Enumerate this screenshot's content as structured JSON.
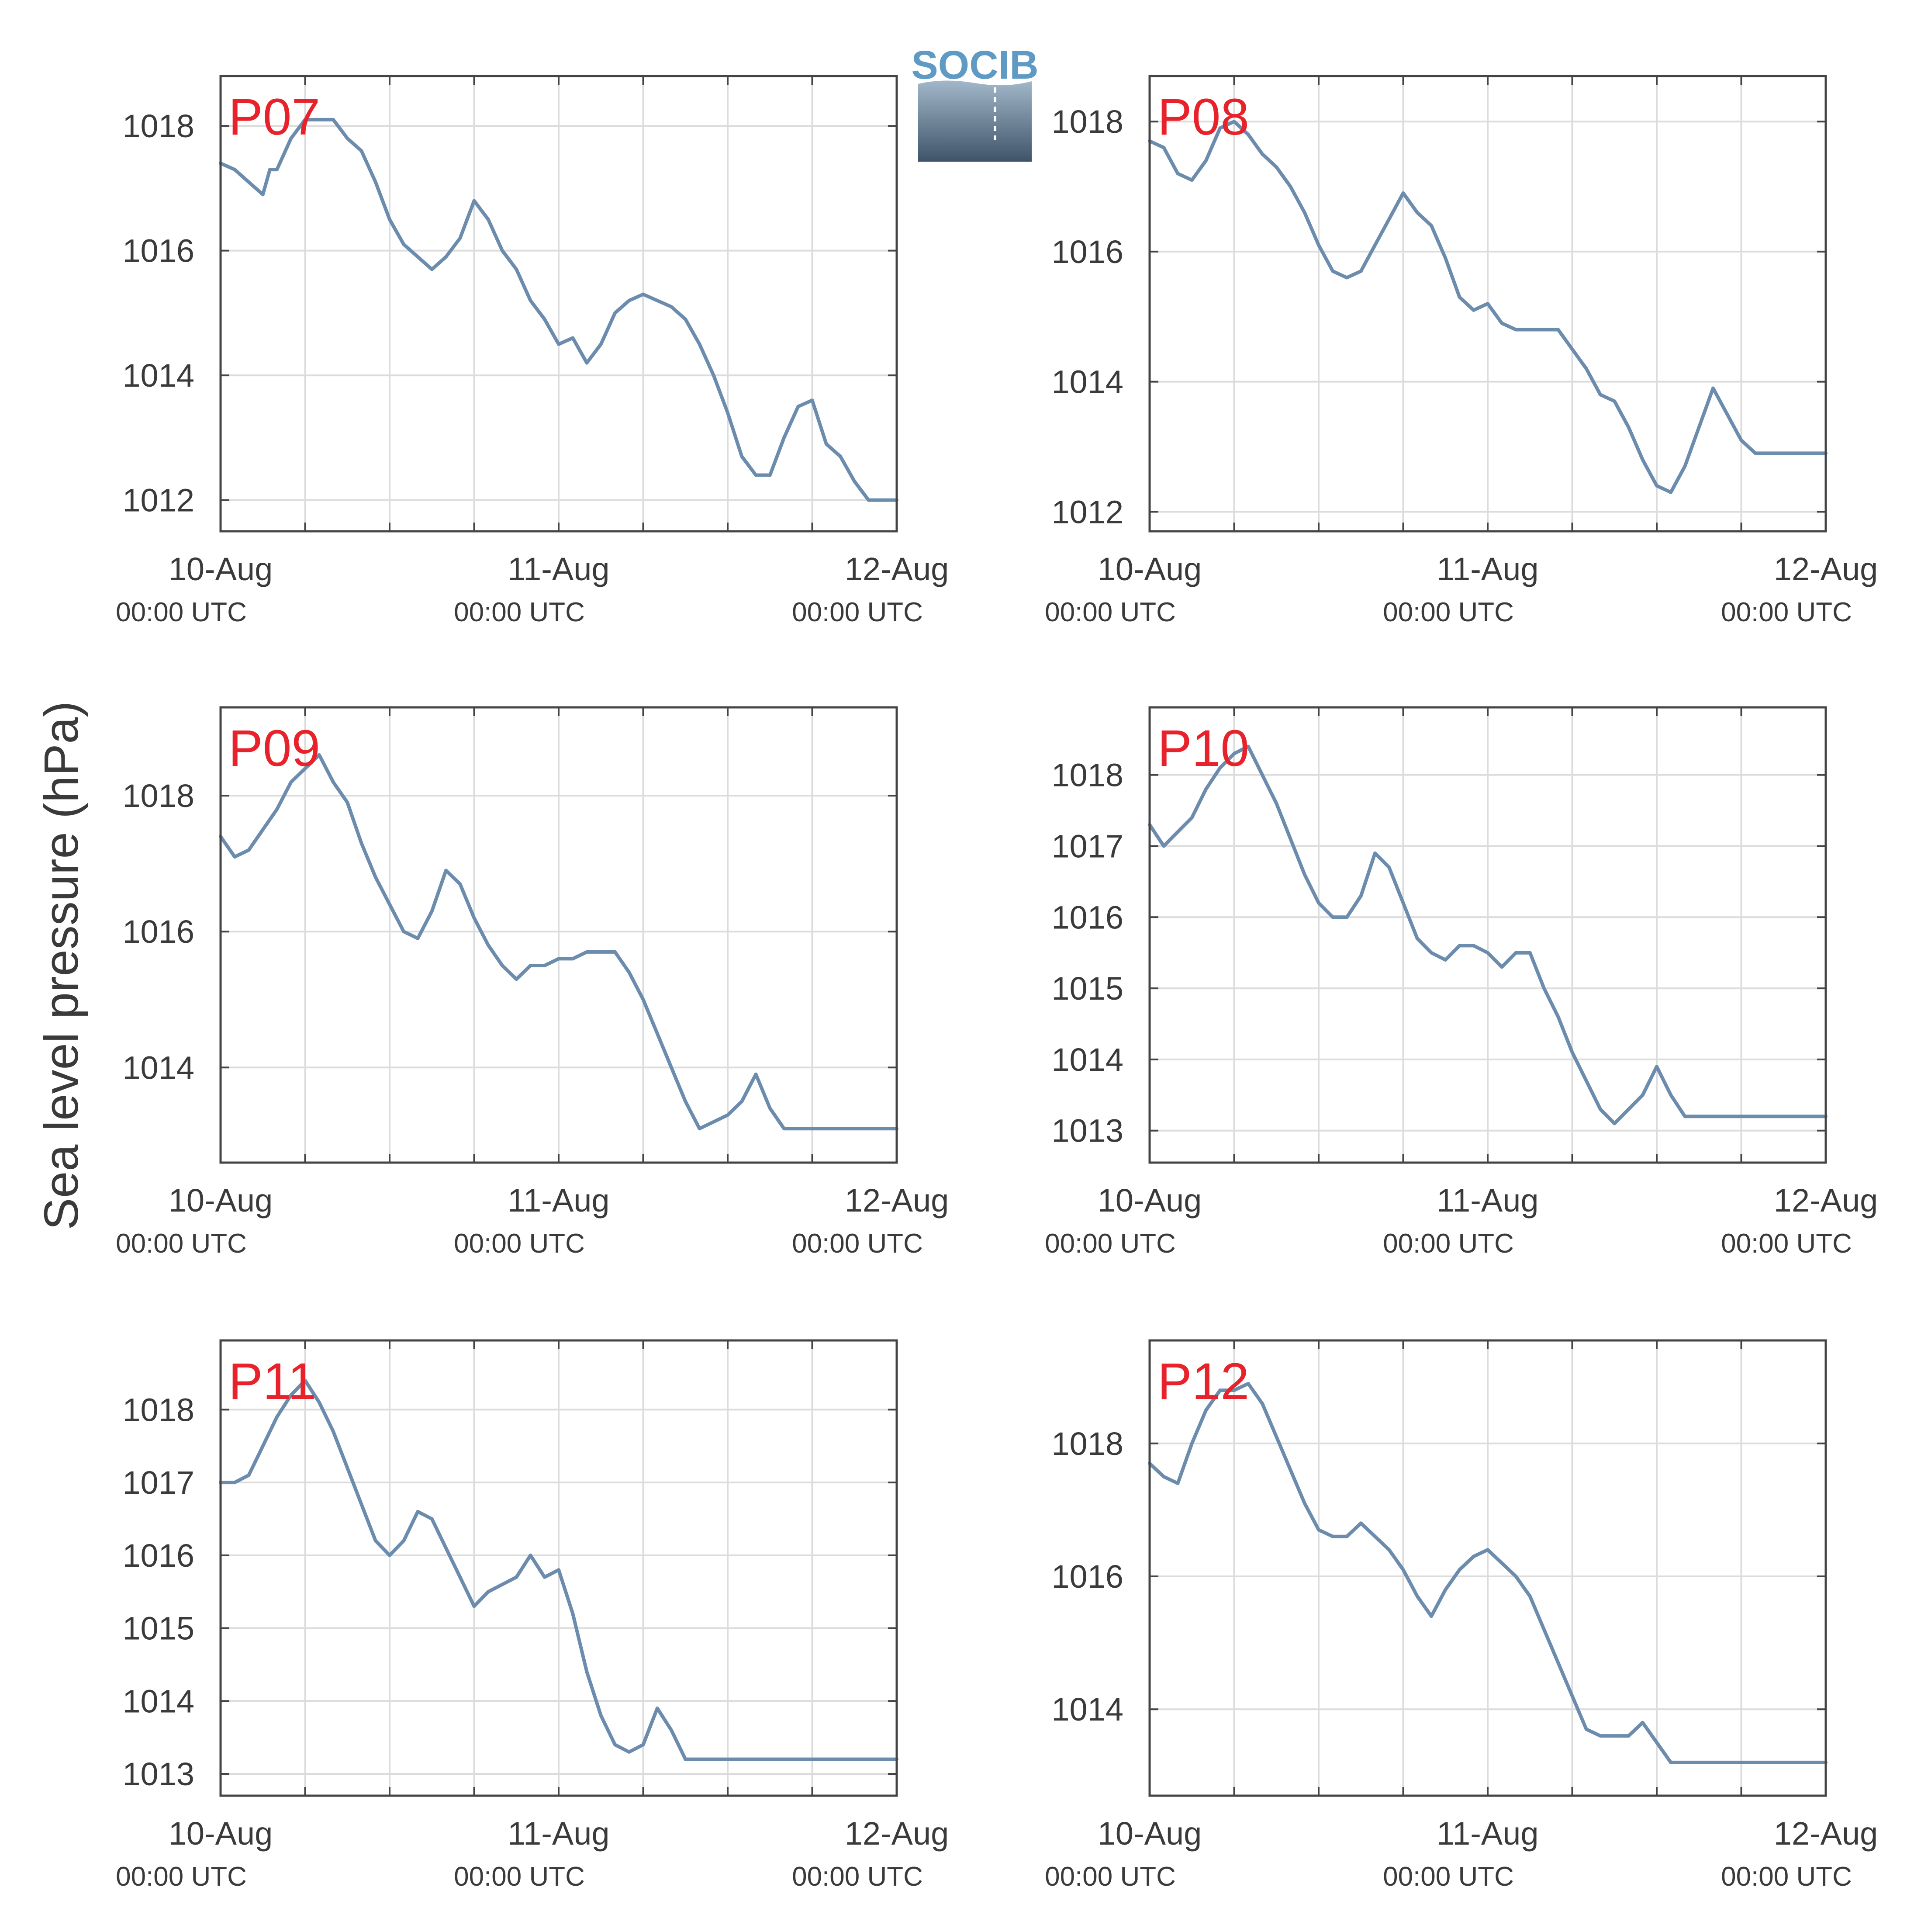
{
  "figure": {
    "ylabel": "Sea level pressure (hPa)",
    "logo_text": "SOCIB",
    "line_color": "#6c8cae",
    "label_color": "#e8222a",
    "grid_color": "#dcdcdc",
    "axis_color": "#444444",
    "text_color": "#3a3a3a"
  },
  "chart_data": [
    {
      "type": "line",
      "title": "P07",
      "xlabel": "",
      "ylabel": "Sea level pressure (hPa)",
      "xlim": [
        0,
        48
      ],
      "ylim": [
        1011.5,
        1018.8
      ],
      "grid": true,
      "xticks": [
        0,
        24,
        48
      ],
      "xtick_labels": [
        [
          "10-Aug",
          "00:00 UTC"
        ],
        [
          "11-Aug",
          "00:00 UTC"
        ],
        [
          "12-Aug",
          "00:00 UTC"
        ]
      ],
      "yticks": [
        1012,
        1014,
        1016,
        1018
      ],
      "series": [
        {
          "x": [
            0,
            1,
            2,
            3,
            3.5,
            4,
            5,
            6,
            7,
            8,
            9,
            10,
            11,
            12,
            13,
            14,
            15,
            16,
            17,
            18,
            19,
            20,
            21,
            22,
            23,
            24,
            25,
            26,
            27,
            28,
            29,
            30,
            31,
            32,
            33,
            34,
            35,
            36,
            37,
            38,
            39,
            40,
            41,
            42,
            43,
            44,
            45,
            46,
            47,
            48
          ],
          "y": [
            1017.4,
            1017.3,
            1017.1,
            1016.9,
            1017.3,
            1017.3,
            1017.8,
            1018.1,
            1018.1,
            1018.1,
            1017.8,
            1017.6,
            1017.1,
            1016.5,
            1016.1,
            1015.9,
            1015.7,
            1015.9,
            1016.2,
            1016.8,
            1016.5,
            1016.0,
            1015.7,
            1015.2,
            1014.9,
            1014.5,
            1014.6,
            1014.2,
            1014.5,
            1015.0,
            1015.2,
            1015.3,
            1015.2,
            1015.1,
            1014.9,
            1014.5,
            1014.0,
            1013.4,
            1012.7,
            1012.4,
            1012.4,
            1013.0,
            1013.5,
            1013.6,
            1012.9,
            1012.7,
            1012.3,
            1012.0,
            1012.0,
            1012.0
          ]
        }
      ]
    },
    {
      "type": "line",
      "title": "P08",
      "xlabel": "",
      "ylabel": "Sea level pressure (hPa)",
      "xlim": [
        0,
        48
      ],
      "ylim": [
        1011.7,
        1018.7
      ],
      "grid": true,
      "xticks": [
        0,
        24,
        48
      ],
      "xtick_labels": [
        [
          "10-Aug",
          "00:00 UTC"
        ],
        [
          "11-Aug",
          "00:00 UTC"
        ],
        [
          "12-Aug",
          "00:00 UTC"
        ]
      ],
      "yticks": [
        1012,
        1014,
        1016,
        1018
      ],
      "series": [
        {
          "x": [
            0,
            1,
            2,
            3,
            4,
            5,
            6,
            7,
            8,
            9,
            10,
            11,
            12,
            13,
            14,
            15,
            16,
            17,
            18,
            19,
            20,
            21,
            22,
            23,
            24,
            25,
            26,
            27,
            28,
            29,
            30,
            31,
            32,
            33,
            34,
            35,
            36,
            37,
            38,
            39,
            40,
            41,
            42,
            43,
            44,
            45,
            46,
            47,
            48
          ],
          "y": [
            1017.7,
            1017.6,
            1017.2,
            1017.1,
            1017.4,
            1017.9,
            1018.0,
            1017.8,
            1017.5,
            1017.3,
            1017.0,
            1016.6,
            1016.1,
            1015.7,
            1015.6,
            1015.7,
            1016.1,
            1016.5,
            1016.9,
            1016.6,
            1016.4,
            1015.9,
            1015.3,
            1015.1,
            1015.2,
            1014.9,
            1014.8,
            1014.8,
            1014.8,
            1014.8,
            1014.5,
            1014.2,
            1013.8,
            1013.7,
            1013.3,
            1012.8,
            1012.4,
            1012.3,
            1012.7,
            1013.3,
            1013.9,
            1013.5,
            1013.1,
            1012.9,
            1012.9,
            1012.9,
            1012.9,
            1012.9,
            1012.9
          ]
        }
      ]
    },
    {
      "type": "line",
      "title": "P09",
      "xlabel": "",
      "ylabel": "Sea level pressure (hPa)",
      "xlim": [
        0,
        48
      ],
      "ylim": [
        1012.6,
        1019.3
      ],
      "grid": true,
      "xticks": [
        0,
        24,
        48
      ],
      "xtick_labels": [
        [
          "10-Aug",
          "00:00 UTC"
        ],
        [
          "11-Aug",
          "00:00 UTC"
        ],
        [
          "12-Aug",
          "00:00 UTC"
        ]
      ],
      "yticks": [
        1014,
        1016,
        1018
      ],
      "series": [
        {
          "x": [
            0,
            1,
            2,
            3,
            4,
            5,
            6,
            7,
            8,
            9,
            10,
            11,
            12,
            13,
            14,
            15,
            16,
            17,
            18,
            19,
            20,
            21,
            22,
            23,
            24,
            25,
            26,
            27,
            28,
            29,
            30,
            31,
            32,
            33,
            34,
            35,
            36,
            37,
            38,
            39,
            40,
            41,
            42,
            43,
            44,
            45,
            46,
            47,
            48
          ],
          "y": [
            1017.4,
            1017.1,
            1017.2,
            1017.5,
            1017.8,
            1018.2,
            1018.4,
            1018.6,
            1018.2,
            1017.9,
            1017.3,
            1016.8,
            1016.4,
            1016.0,
            1015.9,
            1016.3,
            1016.9,
            1016.7,
            1016.2,
            1015.8,
            1015.5,
            1015.3,
            1015.5,
            1015.5,
            1015.6,
            1015.6,
            1015.7,
            1015.7,
            1015.7,
            1015.4,
            1015.0,
            1014.5,
            1014.0,
            1013.5,
            1013.1,
            1013.2,
            1013.3,
            1013.5,
            1013.9,
            1013.4,
            1013.1,
            1013.1,
            1013.1,
            1013.1,
            1013.1,
            1013.1,
            1013.1,
            1013.1,
            1013.1
          ]
        }
      ]
    },
    {
      "type": "line",
      "title": "P10",
      "xlabel": "",
      "ylabel": "Sea level pressure (hPa)",
      "xlim": [
        0,
        48
      ],
      "ylim": [
        1012.55,
        1018.95
      ],
      "grid": true,
      "xticks": [
        0,
        24,
        48
      ],
      "xtick_labels": [
        [
          "10-Aug",
          "00:00 UTC"
        ],
        [
          "11-Aug",
          "00:00 UTC"
        ],
        [
          "12-Aug",
          "00:00 UTC"
        ]
      ],
      "yticks": [
        1013,
        1014,
        1015,
        1016,
        1017,
        1018
      ],
      "series": [
        {
          "x": [
            0,
            1,
            2,
            3,
            4,
            5,
            6,
            7,
            8,
            9,
            10,
            11,
            12,
            13,
            14,
            15,
            16,
            17,
            18,
            19,
            20,
            21,
            22,
            23,
            24,
            25,
            26,
            27,
            28,
            29,
            30,
            31,
            32,
            33,
            34,
            35,
            36,
            37,
            38,
            39,
            40,
            41,
            42,
            43,
            44,
            45,
            46,
            47,
            48
          ],
          "y": [
            1017.3,
            1017.0,
            1017.2,
            1017.4,
            1017.8,
            1018.1,
            1018.3,
            1018.4,
            1018.0,
            1017.6,
            1017.1,
            1016.6,
            1016.2,
            1016.0,
            1016.0,
            1016.3,
            1016.9,
            1016.7,
            1016.2,
            1015.7,
            1015.5,
            1015.4,
            1015.6,
            1015.6,
            1015.5,
            1015.3,
            1015.5,
            1015.5,
            1015.0,
            1014.6,
            1014.1,
            1013.7,
            1013.3,
            1013.1,
            1013.3,
            1013.5,
            1013.9,
            1013.5,
            1013.2,
            1013.2,
            1013.2,
            1013.2,
            1013.2,
            1013.2,
            1013.2,
            1013.2,
            1013.2,
            1013.2,
            1013.2
          ]
        }
      ]
    },
    {
      "type": "line",
      "title": "P11",
      "xlabel": "",
      "ylabel": "Sea level pressure (hPa)",
      "xlim": [
        0,
        48
      ],
      "ylim": [
        1012.7,
        1018.95
      ],
      "grid": true,
      "xticks": [
        0,
        24,
        48
      ],
      "xtick_labels": [
        [
          "10-Aug",
          "00:00 UTC"
        ],
        [
          "11-Aug",
          "00:00 UTC"
        ],
        [
          "12-Aug",
          "00:00 UTC"
        ]
      ],
      "yticks": [
        1013,
        1014,
        1015,
        1016,
        1017,
        1018
      ],
      "series": [
        {
          "x": [
            0,
            1,
            2,
            3,
            4,
            5,
            6,
            7,
            8,
            9,
            10,
            11,
            12,
            13,
            14,
            15,
            16,
            17,
            18,
            19,
            20,
            21,
            22,
            23,
            24,
            25,
            26,
            27,
            28,
            29,
            30,
            31,
            32,
            33,
            34,
            35,
            36,
            37,
            38,
            39,
            40,
            41,
            42,
            43,
            44,
            45,
            46,
            47,
            48
          ],
          "y": [
            1017.0,
            1017.0,
            1017.1,
            1017.5,
            1017.9,
            1018.2,
            1018.4,
            1018.1,
            1017.7,
            1017.2,
            1016.7,
            1016.2,
            1016.0,
            1016.2,
            1016.6,
            1016.5,
            1016.1,
            1015.7,
            1015.3,
            1015.5,
            1015.6,
            1015.7,
            1016.0,
            1015.7,
            1015.8,
            1015.2,
            1014.4,
            1013.8,
            1013.4,
            1013.3,
            1013.4,
            1013.9,
            1013.6,
            1013.2,
            1013.2,
            1013.2,
            1013.2,
            1013.2,
            1013.2,
            1013.2,
            1013.2,
            1013.2,
            1013.2,
            1013.2,
            1013.2,
            1013.2,
            1013.2,
            1013.2,
            1013.2
          ]
        }
      ]
    },
    {
      "type": "line",
      "title": "P12",
      "xlabel": "",
      "ylabel": "Sea level pressure (hPa)",
      "xlim": [
        0,
        48
      ],
      "ylim": [
        1012.7,
        1019.55
      ],
      "grid": true,
      "xticks": [
        0,
        24,
        48
      ],
      "xtick_labels": [
        [
          "10-Aug",
          "00:00 UTC"
        ],
        [
          "11-Aug",
          "00:00 UTC"
        ],
        [
          "12-Aug",
          "00:00 UTC"
        ]
      ],
      "yticks": [
        1014,
        1016,
        1018
      ],
      "series": [
        {
          "x": [
            0,
            1,
            2,
            3,
            4,
            5,
            6,
            7,
            8,
            9,
            10,
            11,
            12,
            13,
            14,
            15,
            16,
            17,
            18,
            19,
            20,
            21,
            22,
            23,
            24,
            25,
            26,
            27,
            28,
            29,
            30,
            31,
            32,
            33,
            34,
            35,
            36,
            37,
            38,
            39,
            40,
            41,
            42,
            43,
            44,
            45,
            46,
            47,
            48
          ],
          "y": [
            1017.7,
            1017.5,
            1017.4,
            1018.0,
            1018.5,
            1018.8,
            1018.8,
            1018.9,
            1018.6,
            1018.1,
            1017.6,
            1017.1,
            1016.7,
            1016.6,
            1016.6,
            1016.8,
            1016.6,
            1016.4,
            1016.1,
            1015.7,
            1015.4,
            1015.8,
            1016.1,
            1016.3,
            1016.4,
            1016.2,
            1016.0,
            1015.7,
            1015.2,
            1014.7,
            1014.2,
            1013.7,
            1013.6,
            1013.6,
            1013.6,
            1013.8,
            1013.5,
            1013.2,
            1013.2,
            1013.2,
            1013.2,
            1013.2,
            1013.2,
            1013.2,
            1013.2,
            1013.2,
            1013.2,
            1013.2,
            1013.2
          ]
        }
      ]
    }
  ]
}
